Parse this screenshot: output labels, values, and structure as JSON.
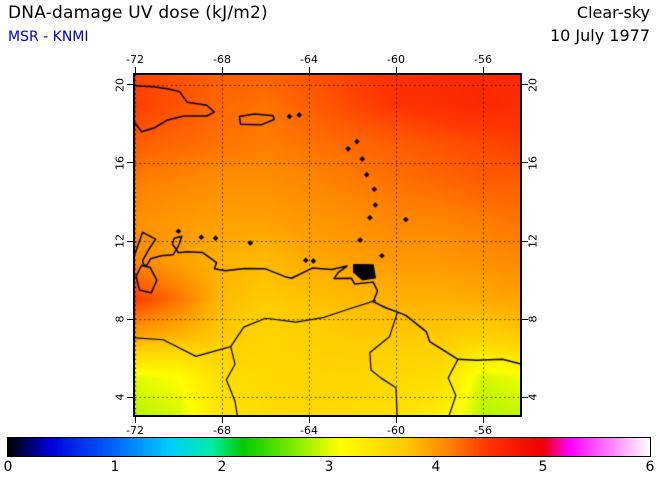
{
  "header": {
    "title": "DNA-damage UV dose (kJ/m2)",
    "source": "MSR - KNMI",
    "source_color": "#0000cc",
    "condition": "Clear-sky",
    "date": "10 July 1977"
  },
  "chart_data": {
    "type": "heatmap",
    "title": "DNA-damage UV dose (kJ/m2)",
    "subtitle": "MSR - KNMI",
    "condition": "Clear-sky",
    "date": "10 July 1977",
    "units": "kJ/m2",
    "lon_range": [
      -72,
      -54.3
    ],
    "lat_range": [
      3.1,
      20.5
    ],
    "x_ticks": [
      -72,
      -68,
      -64,
      -60,
      -56
    ],
    "x_tick_labels": [
      "-72",
      "-68",
      "-64",
      "-60",
      "-56"
    ],
    "y_ticks": [
      20,
      16,
      12,
      8,
      4
    ],
    "y_tick_labels": [
      "20",
      "16",
      "12",
      "8",
      "4"
    ],
    "grid_on": true,
    "grid_lons": [
      -72,
      -70,
      -68,
      -66,
      -64,
      -62,
      -60,
      -58,
      -56,
      -54
    ],
    "grid_lats": [
      21,
      19,
      17,
      15,
      13,
      11,
      9,
      7,
      5,
      3
    ],
    "values": [
      [
        4.4,
        4.35,
        4.3,
        4.3,
        4.35,
        4.45,
        4.55,
        4.6,
        4.6,
        4.6
      ],
      [
        4.45,
        4.35,
        4.25,
        4.2,
        4.3,
        4.4,
        4.5,
        4.55,
        4.6,
        4.55
      ],
      [
        4.3,
        4.25,
        4.2,
        4.15,
        4.2,
        4.25,
        4.3,
        4.35,
        4.4,
        4.45
      ],
      [
        4.15,
        4.1,
        4.05,
        4.05,
        4.1,
        4.15,
        4.2,
        4.25,
        4.3,
        4.3
      ],
      [
        4.05,
        4.0,
        3.95,
        3.95,
        4.0,
        4.05,
        4.1,
        4.1,
        4.15,
        4.2
      ],
      [
        4.1,
        3.95,
        3.85,
        3.8,
        3.9,
        3.95,
        4.0,
        4.0,
        4.05,
        4.1
      ],
      [
        4.45,
        4.2,
        3.8,
        3.7,
        3.75,
        3.8,
        3.85,
        3.85,
        3.9,
        3.95
      ],
      [
        3.9,
        3.8,
        3.7,
        3.6,
        3.65,
        3.7,
        3.7,
        3.7,
        3.6,
        3.7
      ],
      [
        3.0,
        3.1,
        3.5,
        3.55,
        3.6,
        3.6,
        3.55,
        3.5,
        2.95,
        3.05
      ],
      [
        2.85,
        2.95,
        3.4,
        3.5,
        3.55,
        3.5,
        3.45,
        3.3,
        2.85,
        2.9
      ]
    ],
    "colorbar": {
      "min": 0,
      "max": 6,
      "tick_labels": [
        "0",
        "1",
        "2",
        "3",
        "4",
        "5",
        "6"
      ],
      "stops": [
        [
          0.0,
          "#000000"
        ],
        [
          0.4,
          "#0000dd"
        ],
        [
          1.0,
          "#0066ff"
        ],
        [
          1.5,
          "#00ccff"
        ],
        [
          1.9,
          "#00eeaa"
        ],
        [
          2.2,
          "#00cc00"
        ],
        [
          2.7,
          "#88ee00"
        ],
        [
          3.1,
          "#ffff00"
        ],
        [
          3.7,
          "#ffcc00"
        ],
        [
          4.1,
          "#ff8800"
        ],
        [
          4.5,
          "#ff3300"
        ],
        [
          5.0,
          "#ee0000"
        ],
        [
          5.25,
          "#ff00ff"
        ],
        [
          5.7,
          "#ff99ff"
        ],
        [
          6.0,
          "#ffffff"
        ]
      ]
    }
  },
  "map_overlay": {
    "coastlines": [
      [
        [
          -72,
          11.35
        ],
        [
          -71.65,
          12.45
        ],
        [
          -71.05,
          12.1
        ],
        [
          -71.35,
          11.6
        ],
        [
          -71.65,
          11.0
        ],
        [
          -71.6,
          10.75
        ],
        [
          -71.45,
          10.78
        ],
        [
          -71.28,
          11.1
        ],
        [
          -70.8,
          11.25
        ],
        [
          -70.25,
          11.3
        ],
        [
          -70.0,
          11.75
        ],
        [
          -69.85,
          12.25
        ],
        [
          -70.2,
          12.15
        ],
        [
          -70.28,
          11.85
        ],
        [
          -70.0,
          11.4
        ],
        [
          -69.6,
          11.45
        ],
        [
          -68.9,
          11.42
        ],
        [
          -68.25,
          10.9
        ],
        [
          -68.35,
          10.58
        ],
        [
          -67.85,
          10.48
        ],
        [
          -66.95,
          10.6
        ],
        [
          -66.0,
          10.58
        ],
        [
          -65.1,
          10.18
        ],
        [
          -64.8,
          10.1
        ],
        [
          -63.85,
          10.62
        ],
        [
          -62.95,
          10.55
        ],
        [
          -62.25,
          10.72
        ],
        [
          -62.65,
          10.4
        ],
        [
          -62.85,
          10.08
        ],
        [
          -62.05,
          10.1
        ],
        [
          -61.9,
          9.8
        ],
        [
          -61.05,
          9.9
        ],
        [
          -60.85,
          9.45
        ],
        [
          -61.05,
          8.9
        ],
        [
          -60.5,
          8.6
        ],
        [
          -59.9,
          8.35
        ],
        [
          -59.55,
          8.2
        ],
        [
          -58.6,
          7.35
        ],
        [
          -58.45,
          6.85
        ],
        [
          -57.15,
          5.95
        ],
        [
          -56.3,
          5.9
        ],
        [
          -55.1,
          5.95
        ],
        [
          -54.3,
          5.72
        ]
      ],
      [
        [
          -72,
          19.95
        ],
        [
          -71.2,
          19.9
        ],
        [
          -70.5,
          19.8
        ],
        [
          -69.95,
          19.65
        ],
        [
          -69.6,
          19.1
        ],
        [
          -68.7,
          18.95
        ],
        [
          -68.35,
          18.6
        ],
        [
          -68.7,
          18.4
        ],
        [
          -69.75,
          18.4
        ],
        [
          -70.5,
          18.2
        ],
        [
          -71.1,
          17.8
        ],
        [
          -71.7,
          17.6
        ],
        [
          -72,
          18.05
        ]
      ],
      [
        [
          -67.2,
          18.38
        ],
        [
          -66.5,
          18.5
        ],
        [
          -65.65,
          18.42
        ],
        [
          -65.6,
          18.22
        ],
        [
          -66.2,
          17.95
        ],
        [
          -67.15,
          17.98
        ],
        [
          -67.2,
          18.38
        ]
      ],
      [
        [
          -71.7,
          10.75
        ],
        [
          -71.3,
          10.65
        ],
        [
          -71.0,
          10.0
        ],
        [
          -71.25,
          9.35
        ],
        [
          -71.8,
          9.5
        ],
        [
          -71.95,
          10.2
        ],
        [
          -71.7,
          10.75
        ]
      ]
    ],
    "filled_islands": [
      [
        [
          -61.95,
          10.8
        ],
        [
          -61.05,
          10.78
        ],
        [
          -60.95,
          10.12
        ],
        [
          -61.55,
          10.02
        ],
        [
          -61.95,
          10.42
        ]
      ]
    ],
    "islands": [
      [
        -64.9,
        18.38
      ],
      [
        -64.45,
        18.45
      ],
      [
        -61.8,
        17.1
      ],
      [
        -62.2,
        16.72
      ],
      [
        -61.55,
        16.2
      ],
      [
        -61.35,
        15.4
      ],
      [
        -61.0,
        14.65
      ],
      [
        -60.95,
        13.85
      ],
      [
        -61.2,
        13.2
      ],
      [
        -61.65,
        12.05
      ],
      [
        -59.55,
        13.1
      ],
      [
        -60.65,
        11.25
      ],
      [
        -70.0,
        12.5
      ],
      [
        -68.95,
        12.2
      ],
      [
        -68.3,
        12.15
      ],
      [
        -66.7,
        11.9
      ],
      [
        -64.15,
        11.02
      ],
      [
        -63.8,
        10.98
      ]
    ],
    "borders_rivers": [
      [
        [
          -60.95,
          8.95
        ],
        [
          -62.1,
          8.55
        ],
        [
          -63.3,
          8.1
        ],
        [
          -64.6,
          7.85
        ],
        [
          -66.0,
          8.05
        ],
        [
          -67.0,
          7.6
        ],
        [
          -67.6,
          6.6
        ],
        [
          -67.4,
          5.7
        ],
        [
          -67.8,
          4.9
        ],
        [
          -67.4,
          3.8
        ],
        [
          -67.3,
          3.1
        ]
      ],
      [
        [
          -59.95,
          8.3
        ],
        [
          -60.3,
          7.1
        ],
        [
          -61.2,
          6.3
        ],
        [
          -61.15,
          5.4
        ],
        [
          -60.7,
          5.0
        ],
        [
          -60.0,
          4.5
        ],
        [
          -59.95,
          3.1
        ]
      ],
      [
        [
          -57.15,
          5.95
        ],
        [
          -57.6,
          5.0
        ],
        [
          -57.25,
          4.1
        ],
        [
          -57.55,
          3.1
        ]
      ],
      [
        [
          -67.6,
          6.6
        ],
        [
          -69.2,
          6.1
        ],
        [
          -70.7,
          6.95
        ],
        [
          -72.0,
          7.05
        ]
      ]
    ]
  }
}
